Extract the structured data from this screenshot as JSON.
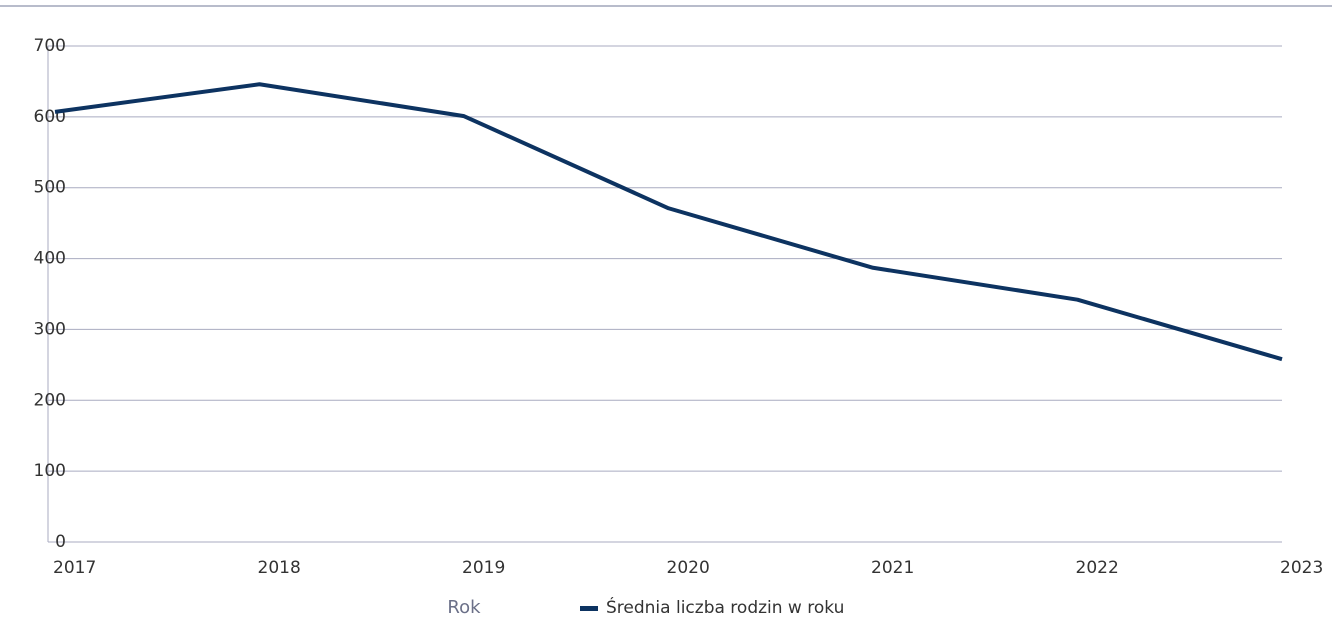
{
  "chart_data": {
    "type": "line",
    "x_label": "Rok",
    "categories": [
      "2017",
      "2018",
      "2019",
      "2020",
      "2021",
      "2022",
      "2023"
    ],
    "series": [
      {
        "name": "Średnia liczba rodzin w roku",
        "color": "#0d3361",
        "values": [
          607,
          646,
          601,
          471,
          387,
          342,
          258
        ]
      }
    ],
    "ylim": [
      0,
      700
    ],
    "yticks": [
      0,
      100,
      200,
      300,
      400,
      500,
      600,
      700
    ],
    "grid": true
  }
}
